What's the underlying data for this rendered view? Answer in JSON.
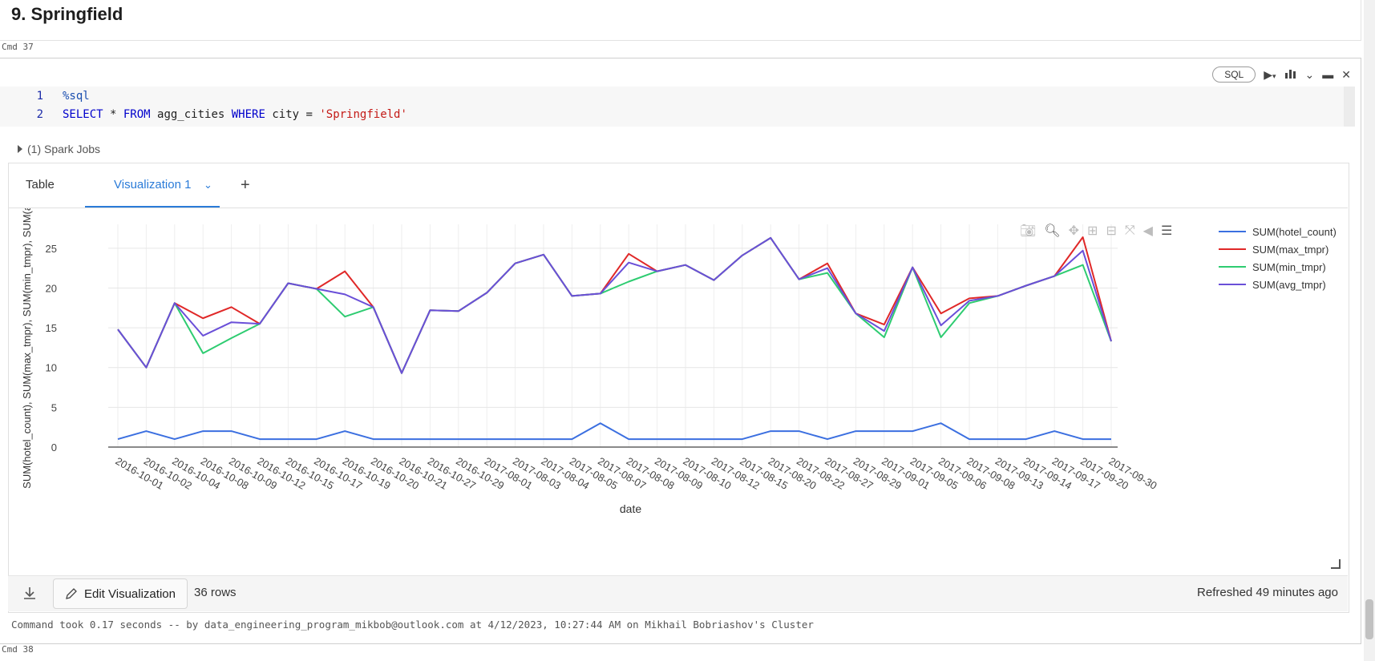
{
  "header": {
    "title": "9. Springfield"
  },
  "cmd_prev": "Cmd 37",
  "cmd_next": "Cmd 38",
  "toolbar": {
    "language": "SQL"
  },
  "editor": {
    "lines": [
      {
        "num": "1",
        "magic": "%sql"
      },
      {
        "num": "2",
        "kw1": "SELECT",
        "t1": " * ",
        "kw2": "FROM",
        "t2": " agg_cities ",
        "kw3": "WHERE",
        "t3": " city = ",
        "str": "'Springfield'"
      }
    ]
  },
  "jobs": {
    "label": "(1) Spark Jobs"
  },
  "tabs": {
    "table": "Table",
    "visualization": "Visualization 1",
    "add": "+"
  },
  "footer": {
    "edit_label": "Edit Visualization",
    "rows": "36 rows",
    "refreshed": "Refreshed 49 minutes ago",
    "command_took": "Command took 0.17 seconds -- by data_engineering_program_mikbob@outlook.com at 4/12/2023, 10:27:44 AM on Mikhail Bobriashov's Cluster"
  },
  "chart_data": {
    "type": "line",
    "xlabel": "date",
    "ylabel": "SUM(hotel_count), SUM(max_tmpr), SUM(min_tmpr), SUM(avg",
    "ylim": [
      0,
      27
    ],
    "yticks": [
      0,
      5,
      10,
      15,
      20,
      25
    ],
    "grid": true,
    "legend_position": "right",
    "categories": [
      "2016-10-01",
      "2016-10-02",
      "2016-10-04",
      "2016-10-08",
      "2016-10-09",
      "2016-10-12",
      "2016-10-15",
      "2016-10-17",
      "2016-10-19",
      "2016-10-20",
      "2016-10-21",
      "2016-10-27",
      "2016-10-29",
      "2017-08-01",
      "2017-08-03",
      "2017-08-04",
      "2017-08-05",
      "2017-08-07",
      "2017-08-08",
      "2017-08-09",
      "2017-08-10",
      "2017-08-12",
      "2017-08-15",
      "2017-08-20",
      "2017-08-22",
      "2017-08-27",
      "2017-08-29",
      "2017-09-01",
      "2017-09-05",
      "2017-09-06",
      "2017-09-08",
      "2017-09-13",
      "2017-09-14",
      "2017-09-17",
      "2017-09-20",
      "2017-09-30"
    ],
    "series": [
      {
        "name": "SUM(hotel_count)",
        "color": "#3b6fe0",
        "values": [
          1,
          2,
          1,
          2,
          2,
          1,
          1,
          1,
          2,
          1,
          1,
          1,
          1,
          1,
          1,
          1,
          1,
          3,
          1,
          1,
          1,
          1,
          1,
          2,
          2,
          1,
          2,
          2,
          2,
          3,
          1,
          1,
          1,
          2,
          1,
          1
        ]
      },
      {
        "name": "SUM(max_tmpr)",
        "color": "#e02828",
        "values": [
          14.8,
          10,
          18.1,
          16.2,
          17.6,
          15.5,
          20.6,
          19.9,
          22.1,
          17.6,
          9.3,
          17.2,
          17.1,
          19.4,
          23.1,
          24.2,
          19,
          19.3,
          24.3,
          22.1,
          22.9,
          21,
          24.1,
          26.3,
          21.1,
          23.1,
          16.8,
          15.4,
          22.6,
          16.8,
          18.7,
          19,
          20.3,
          21.5,
          26.4,
          13.3
        ]
      },
      {
        "name": "SUM(min_tmpr)",
        "color": "#2ecc71",
        "values": [
          14.8,
          10,
          18.1,
          11.8,
          13.7,
          15.5,
          20.6,
          19.9,
          16.4,
          17.6,
          9.3,
          17.2,
          17.1,
          19.4,
          23.1,
          24.2,
          19,
          19.3,
          20.8,
          22.1,
          22.9,
          21,
          24.1,
          26.3,
          21.1,
          21.9,
          16.8,
          13.8,
          22.6,
          13.8,
          18.1,
          19,
          20.3,
          21.5,
          22.9,
          13.3
        ]
      },
      {
        "name": "SUM(avg_tmpr)",
        "color": "#6a4fd8",
        "values": [
          14.8,
          10,
          18.1,
          14,
          15.7,
          15.5,
          20.6,
          19.9,
          19.2,
          17.6,
          9.3,
          17.2,
          17.1,
          19.4,
          23.1,
          24.2,
          19,
          19.3,
          23.2,
          22.1,
          22.9,
          21,
          24.1,
          26.3,
          21.1,
          22.5,
          16.8,
          14.6,
          22.6,
          15.3,
          18.4,
          19,
          20.3,
          21.5,
          24.7,
          13.3
        ]
      }
    ]
  }
}
